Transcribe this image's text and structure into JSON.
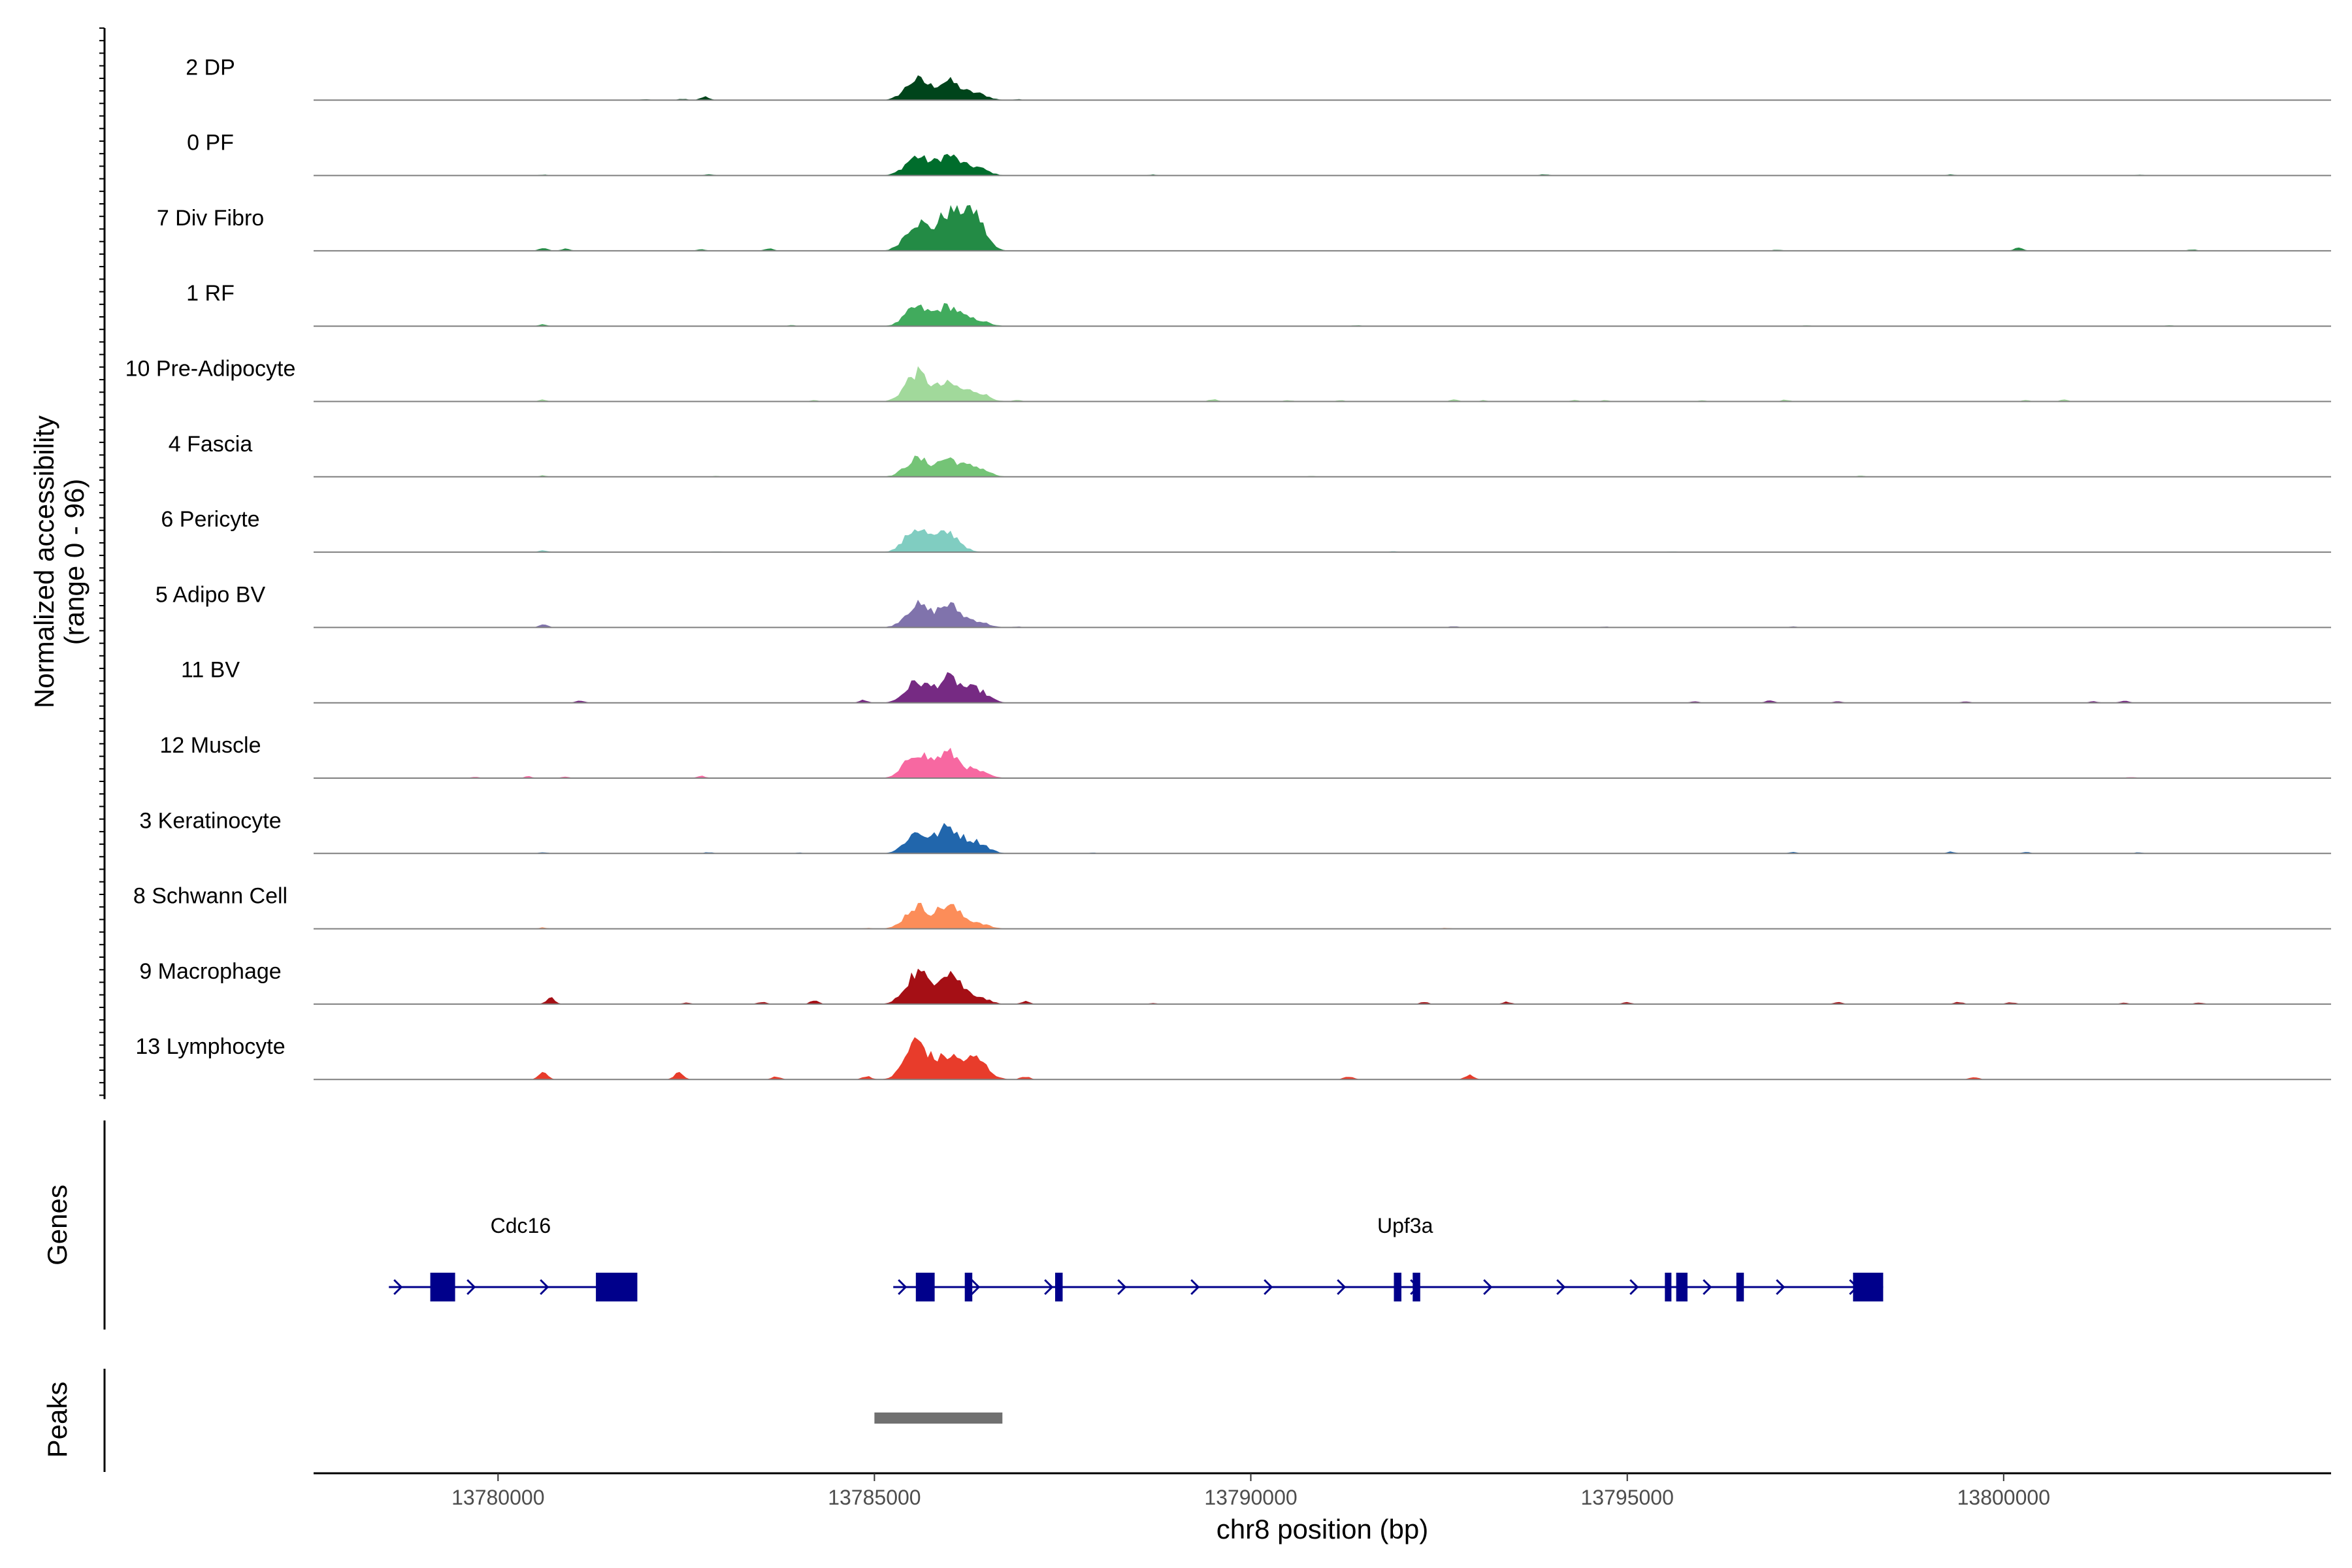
{
  "chart_data": {
    "type": "area",
    "title": "",
    "ylabel": "Normalized accessibility",
    "ylabel_range": "(range 0 - 96)",
    "y_range": [
      0,
      96
    ],
    "xlabel": "chr8 position (bp)",
    "xlim": [
      13777550,
      13804350
    ],
    "x_ticks": [
      13780000,
      13785000,
      13790000,
      13795000,
      13800000
    ],
    "x_tick_labels": [
      "13780000",
      "13785000",
      "13790000",
      "13795000",
      "13800000"
    ],
    "peak_positions": [
      13785560,
      13785980
    ],
    "tracks": [
      {
        "label": "2 DP",
        "color": "#00441b",
        "peaks": [
          [
            13785560,
            46
          ],
          [
            13785980,
            42
          ],
          [
            13786350,
            15
          ]
        ],
        "minor": [
          [
            13782750,
            8
          ],
          [
            13782450,
            3
          ],
          [
            13781950,
            2
          ],
          [
            13786900,
            2
          ]
        ]
      },
      {
        "label": "0 PF",
        "color": "#006d2c",
        "peaks": [
          [
            13785560,
            42
          ],
          [
            13785980,
            44
          ],
          [
            13786350,
            18
          ]
        ],
        "minor": [
          [
            13780600,
            2
          ],
          [
            13782800,
            3
          ],
          [
            13788700,
            2
          ],
          [
            13793900,
            3
          ],
          [
            13799300,
            2
          ],
          [
            13801800,
            2
          ]
        ]
      },
      {
        "label": "7 Div Fibro",
        "color": "#238b45",
        "peaks": [
          [
            13785560,
            64
          ],
          [
            13785980,
            80
          ],
          [
            13786300,
            88
          ]
        ],
        "minor": [
          [
            13780600,
            6
          ],
          [
            13780900,
            5
          ],
          [
            13782700,
            4
          ],
          [
            13783600,
            5
          ],
          [
            13797000,
            3
          ],
          [
            13800200,
            7
          ],
          [
            13802500,
            3
          ]
        ]
      },
      {
        "label": "1 RF",
        "color": "#41ab5d",
        "peaks": [
          [
            13785560,
            42
          ],
          [
            13785980,
            44
          ],
          [
            13786350,
            14
          ]
        ],
        "minor": [
          [
            13780600,
            4
          ],
          [
            13783900,
            2
          ],
          [
            13791400,
            2
          ],
          [
            13797400,
            2
          ],
          [
            13802200,
            2
          ]
        ]
      },
      {
        "label": "10 Pre-Adipocyte",
        "color": "#a1d99b",
        "peaks": [
          [
            13785560,
            64
          ],
          [
            13785980,
            38
          ],
          [
            13786350,
            22
          ]
        ],
        "minor": [
          [
            13780600,
            4
          ],
          [
            13784200,
            3
          ],
          [
            13786900,
            3
          ],
          [
            13789500,
            5
          ],
          [
            13790500,
            3
          ],
          [
            13791200,
            3
          ],
          [
            13792700,
            4
          ],
          [
            13793100,
            3
          ],
          [
            13794300,
            3
          ],
          [
            13794700,
            3
          ],
          [
            13796000,
            3
          ],
          [
            13797100,
            4
          ],
          [
            13800300,
            3
          ],
          [
            13800800,
            4
          ]
        ]
      },
      {
        "label": "4 Fascia",
        "color": "#74c476",
        "peaks": [
          [
            13785560,
            40
          ],
          [
            13785980,
            40
          ],
          [
            13786350,
            22
          ]
        ],
        "minor": [
          [
            13780600,
            3
          ],
          [
            13782900,
            2
          ],
          [
            13790800,
            2
          ],
          [
            13798100,
            2
          ]
        ]
      },
      {
        "label": "6 Pericyte",
        "color": "#80cdc1",
        "peaks": [
          [
            13785560,
            54
          ],
          [
            13785980,
            44
          ]
        ],
        "minor": [
          [
            13780600,
            4
          ],
          [
            13782900,
            2
          ],
          [
            13791900,
            2
          ],
          [
            13795600,
            2
          ]
        ]
      },
      {
        "label": "5 Adipo BV",
        "color": "#8073ac",
        "peaks": [
          [
            13785560,
            50
          ],
          [
            13785980,
            50
          ],
          [
            13786350,
            14
          ]
        ],
        "minor": [
          [
            13780600,
            7
          ],
          [
            13786900,
            2
          ],
          [
            13792700,
            3
          ],
          [
            13794700,
            2
          ],
          [
            13797200,
            2
          ]
        ]
      },
      {
        "label": "11 BV",
        "color": "#762a83",
        "peaks": [
          [
            13785560,
            46
          ],
          [
            13785980,
            54
          ],
          [
            13786350,
            30
          ]
        ],
        "minor": [
          [
            13781100,
            5
          ],
          [
            13784850,
            6
          ],
          [
            13795900,
            3
          ],
          [
            13796900,
            5
          ],
          [
            13797800,
            3
          ],
          [
            13799500,
            3
          ],
          [
            13801200,
            3
          ],
          [
            13801600,
            5
          ]
        ]
      },
      {
        "label": "12 Muscle",
        "color": "#f768a1",
        "peaks": [
          [
            13785560,
            58
          ],
          [
            13785980,
            56
          ],
          [
            13786350,
            16
          ]
        ],
        "minor": [
          [
            13779700,
            3
          ],
          [
            13780400,
            4
          ],
          [
            13780900,
            3
          ],
          [
            13782700,
            5
          ],
          [
            13801700,
            3
          ]
        ]
      },
      {
        "label": "3 Keratinocyte",
        "color": "#2166ac",
        "peaks": [
          [
            13785560,
            46
          ],
          [
            13785980,
            58
          ],
          [
            13786350,
            26
          ]
        ],
        "minor": [
          [
            13780600,
            3
          ],
          [
            13782800,
            3
          ],
          [
            13784000,
            2
          ],
          [
            13787900,
            2
          ],
          [
            13797200,
            3
          ],
          [
            13799300,
            4
          ],
          [
            13800300,
            3
          ],
          [
            13801800,
            3
          ]
        ]
      },
      {
        "label": "8 Schwann Cell",
        "color": "#fc8d59",
        "peaks": [
          [
            13785560,
            50
          ],
          [
            13785980,
            52
          ],
          [
            13786350,
            14
          ]
        ],
        "minor": [
          [
            13780600,
            3
          ],
          [
            13784900,
            2
          ],
          [
            13792600,
            2
          ]
        ]
      },
      {
        "label": "9 Macrophage",
        "color": "#a50f15",
        "peaks": [
          [
            13785560,
            70
          ],
          [
            13785980,
            74
          ],
          [
            13786350,
            18
          ]
        ],
        "minor": [
          [
            13780700,
            14
          ],
          [
            13782500,
            3
          ],
          [
            13783500,
            5
          ],
          [
            13784200,
            8
          ],
          [
            13787000,
            6
          ],
          [
            13788700,
            2
          ],
          [
            13792300,
            5
          ],
          [
            13793400,
            5
          ],
          [
            13795000,
            4
          ],
          [
            13797800,
            4
          ],
          [
            13799400,
            5
          ],
          [
            13800100,
            4
          ],
          [
            13801600,
            3
          ],
          [
            13802600,
            4
          ]
        ]
      },
      {
        "label": "13 Lymphocyte",
        "color": "#e83c2b",
        "peaks": [
          [
            13785560,
            86
          ],
          [
            13785980,
            50
          ],
          [
            13786350,
            46
          ]
        ],
        "minor": [
          [
            13780600,
            16
          ],
          [
            13782400,
            16
          ],
          [
            13783700,
            7
          ],
          [
            13784900,
            8
          ],
          [
            13787000,
            7
          ],
          [
            13791300,
            7
          ],
          [
            13792900,
            10
          ],
          [
            13799600,
            6
          ]
        ]
      }
    ],
    "genes": [
      {
        "name": "Cdc16",
        "start": 13778550,
        "end": 13781850,
        "strand": "+",
        "exons": [
          [
            13779100,
            13779430
          ],
          [
            13781300,
            13781850
          ]
        ]
      },
      {
        "name": "Upf3a",
        "start": 13785250,
        "end": 13798400,
        "strand": "+",
        "exons": [
          [
            13785550,
            13785800
          ],
          [
            13786200,
            13786300
          ],
          [
            13787400,
            13787500
          ],
          [
            13791900,
            13792000
          ],
          [
            13792150,
            13792250
          ],
          [
            13795500,
            13795550
          ],
          [
            13795650,
            13795800
          ],
          [
            13796450,
            13796550
          ],
          [
            13798000,
            13798400
          ]
        ]
      }
    ],
    "peak_regions": [
      {
        "start": 13785000,
        "end": 13786700
      }
    ],
    "panel_labels": {
      "genes": "Genes",
      "peaks": "Peaks"
    }
  },
  "colors": {
    "gene_model": "#00008b",
    "peak_bar": "#707070",
    "baseline": "#7f7f7f",
    "axis": "#000000"
  }
}
